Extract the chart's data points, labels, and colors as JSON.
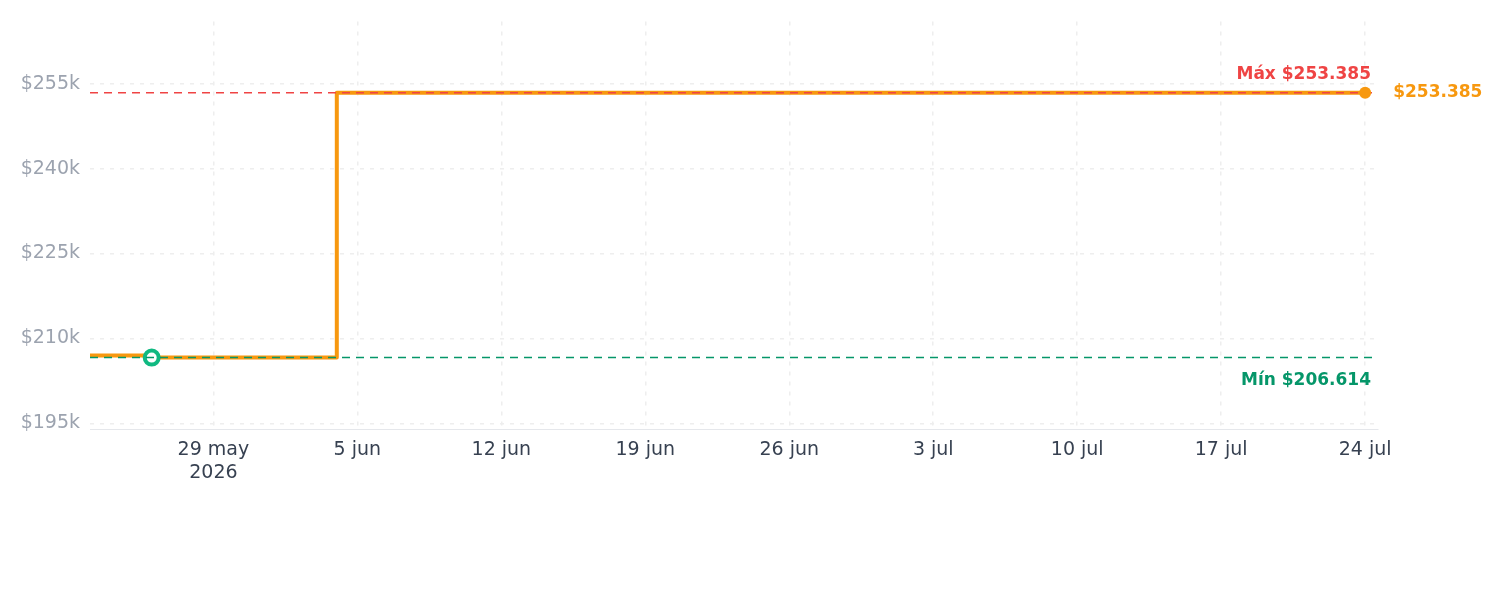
{
  "chart_data": {
    "type": "step",
    "x": [
      "2026-05-23",
      "2026-05-26",
      "2026-06-04",
      "2026-07-24"
    ],
    "series": [
      {
        "color": "#f7980f",
        "values": [
          207000,
          206614,
          253385,
          253385
        ]
      },
      {
        "type": "scatter",
        "marker": "circle",
        "color": "#10b981",
        "x": [
          "2026-05-26"
        ],
        "values": [
          206614
        ]
      }
    ],
    "xlim": [
      "2026-05-23",
      "2026-07-24T15:00"
    ],
    "xticks": [
      {
        "value": "2026-05-29",
        "label": "29 may\n2026"
      },
      {
        "value": "2026-06-05",
        "label": "5 jun"
      },
      {
        "value": "2026-06-12",
        "label": "12 jun"
      },
      {
        "value": "2026-06-19",
        "label": "19 jun"
      },
      {
        "value": "2026-06-26",
        "label": "26 jun"
      },
      {
        "value": "2026-07-03",
        "label": "3 jul"
      },
      {
        "value": "2026-07-10",
        "label": "10 jul"
      },
      {
        "value": "2026-07-17",
        "label": "17 jul"
      },
      {
        "value": "2026-07-24",
        "label": "24 jul"
      }
    ],
    "ylim": [
      194000,
      266000
    ],
    "yticks": [
      {
        "value": 195000,
        "label": "$195k"
      },
      {
        "value": 210000,
        "label": "$210k"
      },
      {
        "value": 225000,
        "label": "$225k"
      },
      {
        "value": 240000,
        "label": "$240k"
      },
      {
        "value": 255000,
        "label": "$255k"
      }
    ],
    "ref_lines": [
      {
        "axis": "y",
        "value": 253385,
        "label": "Máx $253.385",
        "color": "#ef4444",
        "line_style": "dashed"
      },
      {
        "axis": "y",
        "value": 206614,
        "label": "Mín $206.614",
        "color": "#059669",
        "line_style": "dashed"
      }
    ],
    "annotations": [
      {
        "text": "$253.385",
        "x": "2026-07-24",
        "y": 253385
      }
    ],
    "grid": true,
    "legend": false,
    "marker": "none",
    "line_style": "solid"
  }
}
